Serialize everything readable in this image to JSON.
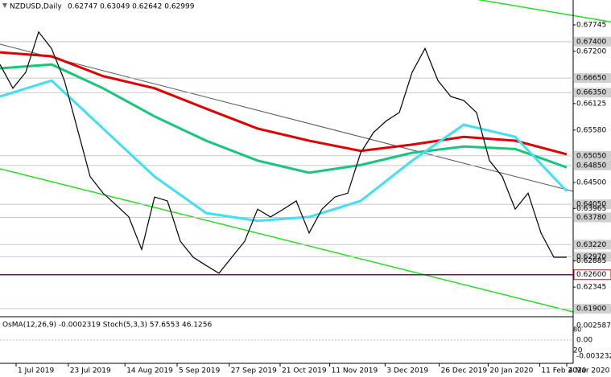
{
  "chart_data": {
    "type": "line",
    "title": "NZDUSD,Daily",
    "subtitle": "0.62747 0.63049 0.62642 0.62999",
    "x": [
      0,
      1,
      2,
      3,
      4,
      5,
      6,
      7,
      8,
      9,
      10,
      11,
      12,
      13,
      14,
      15,
      16,
      17,
      18,
      19,
      20,
      21,
      22,
      23,
      24,
      25,
      26,
      27,
      28,
      29,
      30,
      31,
      32,
      33,
      34,
      35,
      36,
      37,
      38,
      39,
      40,
      41,
      42,
      43,
      44
    ],
    "series": [
      {
        "name": "NZDUSD",
        "color": "#000000",
        "values": [
          0.6693,
          0.6644,
          0.6677,
          0.676,
          0.6726,
          0.666,
          0.6561,
          0.6462,
          0.6428,
          0.6404,
          0.6379,
          0.6312,
          0.642,
          0.6412,
          0.6329,
          0.6296,
          0.6279,
          0.6263,
          0.6296,
          0.6329,
          0.6395,
          0.6379,
          0.6395,
          0.6412,
          0.6346,
          0.6395,
          0.642,
          0.6428,
          0.6511,
          0.6553,
          0.6577,
          0.6594,
          0.6677,
          0.6726,
          0.666,
          0.6627,
          0.6619,
          0.6594,
          0.6495,
          0.6462,
          0.6395,
          0.6428,
          0.6346,
          0.6296,
          0.6296
        ]
      }
    ],
    "moving_averages": {
      "x": [
        0,
        4,
        8,
        12,
        16,
        20,
        24,
        28,
        32,
        36,
        40,
        44
      ],
      "series": [
        {
          "color": "#e00000",
          "values": [
            0.6718,
            0.671,
            0.6669,
            0.6644,
            0.6602,
            0.6561,
            0.6536,
            0.6515,
            0.6528,
            0.6544,
            0.6536,
            0.6508
          ]
        },
        {
          "color": "#16c77a",
          "values": [
            0.6685,
            0.6693,
            0.6644,
            0.6586,
            0.6536,
            0.6495,
            0.647,
            0.6486,
            0.6511,
            0.6524,
            0.6519,
            0.6481
          ]
        },
        {
          "color": "#3ee0f2",
          "values": [
            0.6627,
            0.666,
            0.6561,
            0.6462,
            0.6387,
            0.6371,
            0.6379,
            0.6412,
            0.6495,
            0.6569,
            0.6544,
            0.6432
          ]
        }
      ]
    },
    "ylim": [
      0.61768,
      0.68258
    ],
    "yticks": [
      {
        "value": 0.67745,
        "label": "0.67745"
      },
      {
        "value": 0.672,
        "label": "0.67200"
      },
      {
        "value": 0.66125,
        "label": "0.66125"
      },
      {
        "value": 0.6558,
        "label": "0.65580"
      },
      {
        "value": 0.645,
        "label": "0.64500"
      },
      {
        "value": 0.63965,
        "label": "0.63965"
      },
      {
        "value": 0.62885,
        "label": "0.62885"
      },
      {
        "value": 0.62345,
        "label": "0.62345"
      }
    ],
    "levels": [
      {
        "value": 0.674,
        "label": "0.67400"
      },
      {
        "value": 0.6665,
        "label": "0.66650"
      },
      {
        "value": 0.6635,
        "label": "0.66350"
      },
      {
        "value": 0.6505,
        "label": "0.65050"
      },
      {
        "value": 0.6485,
        "label": "0.64850"
      },
      {
        "value": 0.6405,
        "label": "0.64050"
      },
      {
        "value": 0.6378,
        "label": "0.63780"
      },
      {
        "value": 0.6322,
        "label": "0.63220"
      },
      {
        "value": 0.6297,
        "label": "0.62970"
      },
      {
        "value": 0.619,
        "label": "0.61900"
      }
    ],
    "key_level": {
      "value": 0.626,
      "label": "0.62600",
      "color": "#800080"
    },
    "xlim": [
      0,
      44.5
    ],
    "xticks": [
      {
        "value": 1.25,
        "label": "1 Jul 2019"
      },
      {
        "value": 5.3,
        "label": "23 Jul 2019"
      },
      {
        "value": 9.7,
        "label": "14 Aug 2019"
      },
      {
        "value": 13.75,
        "label": "5 Sep 2019"
      },
      {
        "value": 17.8,
        "label": "27 Sep 2019"
      },
      {
        "value": 21.75,
        "label": "21 Oct 2019"
      },
      {
        "value": 25.6,
        "label": "11 Nov 2019"
      },
      {
        "value": 29.9,
        "label": "3 Dec 2019"
      },
      {
        "value": 34.1,
        "label": "26 Dec 2019"
      },
      {
        "value": 37.9,
        "label": "20 Jan 2020"
      },
      {
        "value": 41.9,
        "label": "11 Feb 2020"
      },
      {
        "value": 44,
        "label": "4 Mar 2020"
      }
    ],
    "indicator": {
      "title": "OsMA(12,26,9) -0.0002319  Stoch(5,3,3) 57.6553 46.1256",
      "labels": [
        "0.0025874",
        "80",
        "0.00",
        "20",
        "-0.003232"
      ]
    }
  }
}
